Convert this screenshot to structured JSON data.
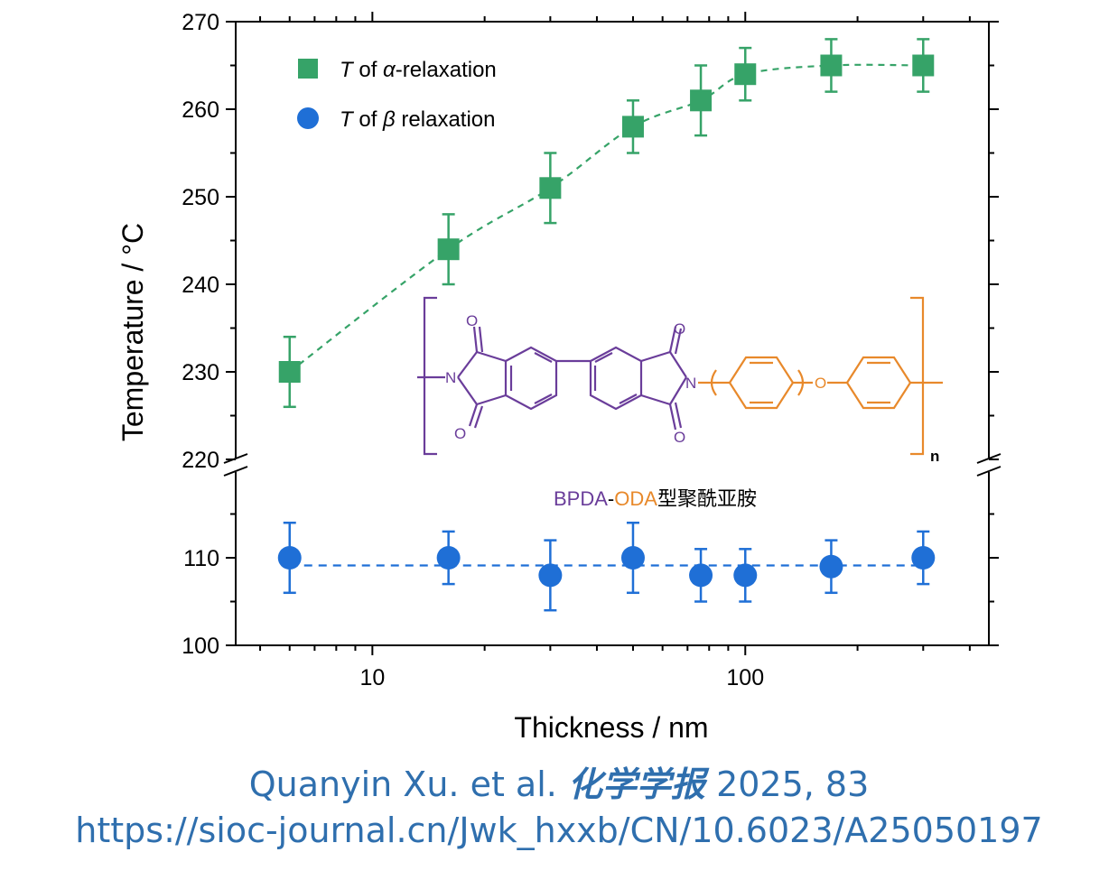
{
  "chart_data": {
    "type": "scatter",
    "xlabel": "Thickness / nm",
    "ylabel": "Temperature / °C",
    "xscale": "log",
    "xlim": [
      4.3,
      450
    ],
    "x_ticks_major": [
      10,
      100
    ],
    "x_tick_labels": [
      "10",
      "100"
    ],
    "y_axis_break": true,
    "y_upper_range": [
      220,
      270
    ],
    "y_upper_ticks": [
      "220",
      "230",
      "240",
      "250",
      "260",
      "270"
    ],
    "y_lower_range": [
      100,
      120
    ],
    "y_lower_ticks": [
      "100",
      "110"
    ],
    "legend_position": "top-left",
    "grid": false,
    "series": [
      {
        "name": "T of α-relaxation",
        "label_parts": {
          "italic_var": "T",
          "mid": " of ",
          "greek": "α",
          "tail": "-relaxation"
        },
        "marker": "square",
        "color": "#36a368",
        "x": [
          6,
          16,
          30,
          50,
          76,
          100,
          170,
          300
        ],
        "y": [
          230,
          244,
          251,
          258,
          261,
          264,
          265,
          265
        ],
        "yerr_low": [
          4,
          4,
          4,
          3,
          4,
          3,
          3,
          3
        ],
        "yerr_high": [
          4,
          4,
          4,
          3,
          4,
          3,
          3,
          3
        ],
        "fit": "dashed"
      },
      {
        "name": "T of β relaxation",
        "label_parts": {
          "italic_var": "T",
          "mid": " of ",
          "greek": "β",
          "tail": " relaxation"
        },
        "marker": "circle",
        "color": "#1f6fd6",
        "x": [
          6,
          16,
          30,
          50,
          76,
          100,
          170,
          300
        ],
        "y": [
          110,
          110,
          108,
          110,
          108,
          108,
          109,
          110
        ],
        "yerr_low": [
          4,
          3,
          4,
          4,
          3,
          3,
          3,
          3
        ],
        "yerr_high": [
          4,
          3,
          4,
          4,
          3,
          3,
          3,
          3
        ],
        "fit": "dashed"
      }
    ]
  },
  "molecule": {
    "atom_O": "O",
    "atom_N": "N",
    "subscript": "n",
    "caption_part1": "BPDA",
    "caption_dash": "-",
    "caption_part2": "ODA",
    "caption_part3": "型聚酰亚胺",
    "color_bpda": "#6a3d9a",
    "color_oda": "#e8892b"
  },
  "citation": {
    "authors": "Quanyin Xu. et al.",
    "journal": "化学学报",
    "year_vol": "2025, 83",
    "url": "https://sioc-journal.cn/Jwk_hxxb/CN/10.6023/A25050197"
  }
}
